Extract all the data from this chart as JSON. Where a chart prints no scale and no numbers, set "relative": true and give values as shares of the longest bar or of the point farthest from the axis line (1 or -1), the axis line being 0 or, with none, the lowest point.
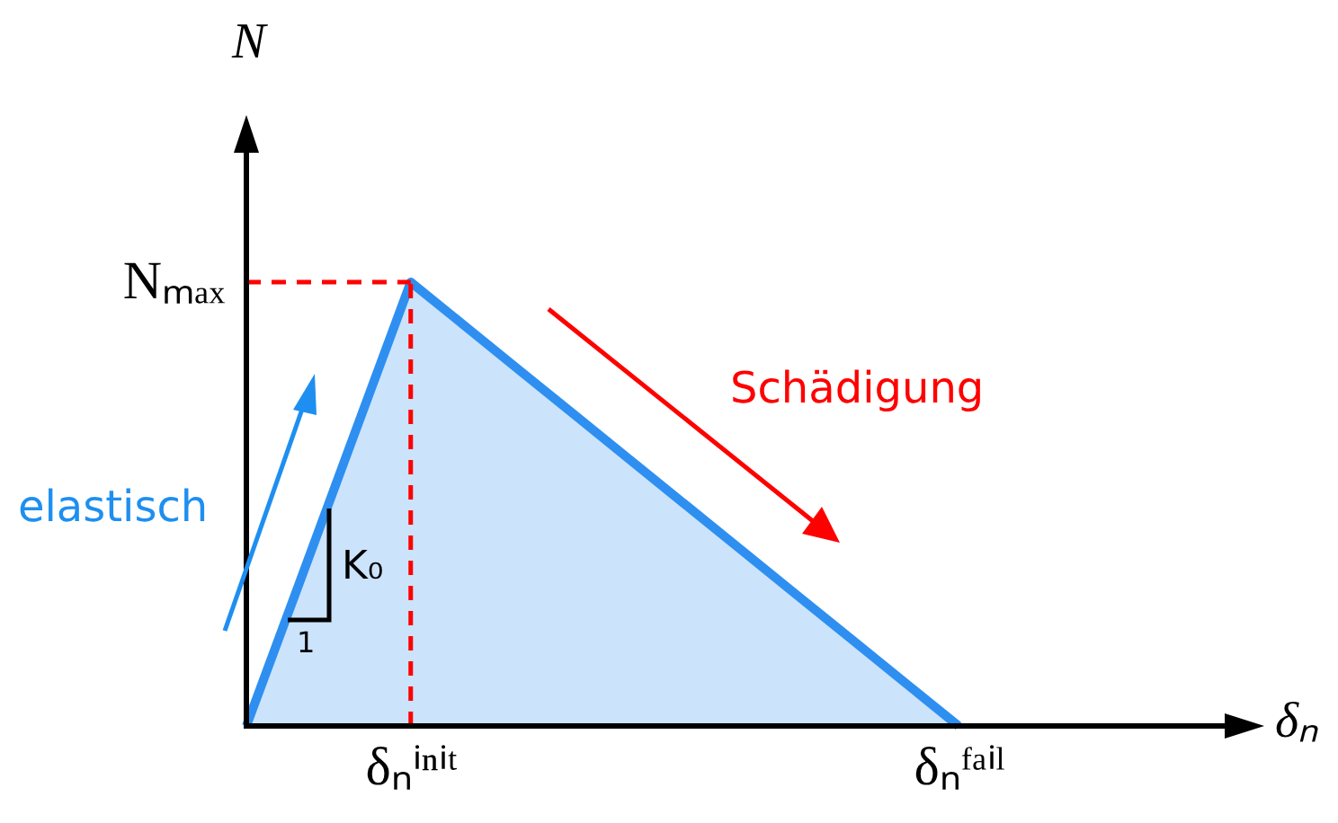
{
  "chart_data": {
    "type": "area",
    "relative": true,
    "xlabel": "δₙ",
    "ylabel": "N",
    "categories": [
      null,
      null,
      null,
      "δₙⁱⁿⁱᵗ",
      null,
      null,
      null,
      null,
      null,
      null,
      null,
      null,
      null,
      "δₙᶠᵃⁱˡ",
      null,
      null,
      null,
      null,
      null
    ],
    "series": [
      {
        "color": "#2e8ff0",
        "values": [
          0,
          0.333,
          0.667,
          1,
          0.9,
          0.8,
          0.7,
          0.6,
          0.5,
          0.4,
          0.3,
          0.2,
          0.1,
          0,
          null,
          null,
          null,
          null,
          null
        ]
      }
    ],
    "ref_lines": [
      {
        "axis": "x",
        "value": "δₙⁱⁿⁱᵗ",
        "color": "#ff0000",
        "line_style": "dashed"
      },
      {
        "axis": "y",
        "value": 1,
        "color": "#ff0000",
        "line_style": "dashed",
        "label": "Nₘₐₓ"
      }
    ],
    "annotations": [
      "elastisch",
      "Schädigung",
      "K₀",
      "1"
    ]
  }
}
